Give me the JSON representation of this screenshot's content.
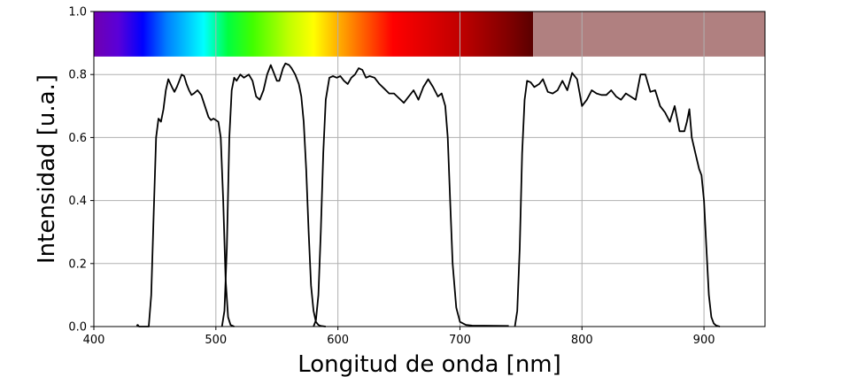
{
  "chart_data": {
    "type": "line",
    "title": "",
    "xlabel": "Longitud de onda [nm]",
    "ylabel": "Intensidad [u.a.]",
    "xlim": [
      400,
      950
    ],
    "ylim": [
      0,
      1
    ],
    "xticks": [
      "400",
      "500",
      "600",
      "700",
      "800",
      "900"
    ],
    "yticks": [
      "0.0",
      "0.2",
      "0.4",
      "0.6",
      "0.8",
      "1.0"
    ],
    "grid": true,
    "legend": "none",
    "line_color": "#000000",
    "spectrum_band": {
      "y_range": [
        0.857,
        1.0
      ],
      "visible_range_nm": [
        400,
        760
      ],
      "beyond_color": "#b08080"
    },
    "series": [
      {
        "x": [
          435,
          436,
          437,
          445,
          447,
          449,
          451,
          453,
          455,
          457,
          459,
          461,
          464,
          466,
          468,
          470,
          472,
          474,
          476,
          478,
          480,
          482,
          485,
          488,
          491,
          494,
          496,
          498,
          500,
          502,
          504,
          506,
          508,
          510,
          512,
          515
        ],
        "y": [
          0.003,
          0.005,
          0.0,
          0.0,
          0.1,
          0.35,
          0.6,
          0.66,
          0.65,
          0.69,
          0.75,
          0.785,
          0.76,
          0.745,
          0.76,
          0.78,
          0.8,
          0.795,
          0.77,
          0.75,
          0.735,
          0.74,
          0.75,
          0.735,
          0.7,
          0.665,
          0.655,
          0.66,
          0.655,
          0.65,
          0.6,
          0.4,
          0.15,
          0.03,
          0.005,
          0.0
        ]
      },
      {
        "x": [
          505,
          507,
          509,
          511,
          513,
          515,
          517,
          520,
          523,
          527,
          530,
          533,
          536,
          539,
          542,
          545,
          548,
          550,
          552,
          555,
          557,
          560,
          562,
          565,
          568,
          570,
          572,
          574,
          576,
          578,
          580,
          582,
          584,
          586,
          590
        ],
        "y": [
          0.0,
          0.05,
          0.25,
          0.6,
          0.75,
          0.79,
          0.78,
          0.8,
          0.79,
          0.8,
          0.78,
          0.73,
          0.72,
          0.75,
          0.8,
          0.83,
          0.8,
          0.78,
          0.78,
          0.82,
          0.835,
          0.83,
          0.82,
          0.8,
          0.77,
          0.73,
          0.65,
          0.5,
          0.3,
          0.13,
          0.05,
          0.015,
          0.005,
          0.002,
          0.0
        ]
      },
      {
        "x": [
          580,
          582,
          584,
          586,
          588,
          590,
          593,
          596,
          599,
          602,
          605,
          608,
          611,
          614,
          617,
          620,
          623,
          626,
          630,
          634,
          638,
          642,
          646,
          650,
          654,
          658,
          662,
          666,
          670,
          674,
          678,
          682,
          685,
          688,
          690,
          692,
          694,
          697,
          700,
          705,
          710,
          740
        ],
        "y": [
          0.0,
          0.02,
          0.1,
          0.3,
          0.55,
          0.72,
          0.79,
          0.795,
          0.79,
          0.795,
          0.78,
          0.77,
          0.79,
          0.8,
          0.82,
          0.815,
          0.79,
          0.795,
          0.79,
          0.77,
          0.755,
          0.74,
          0.74,
          0.725,
          0.71,
          0.73,
          0.75,
          0.72,
          0.76,
          0.785,
          0.76,
          0.73,
          0.74,
          0.7,
          0.6,
          0.4,
          0.2,
          0.06,
          0.015,
          0.005,
          0.003,
          0.002
        ]
      },
      {
        "x": [
          745,
          747,
          749,
          751,
          753,
          755,
          758,
          761,
          765,
          768,
          772,
          776,
          780,
          784,
          788,
          792,
          796,
          800,
          804,
          808,
          812,
          816,
          820,
          824,
          828,
          832,
          836,
          840,
          844,
          848,
          852,
          856,
          860,
          864,
          868,
          872,
          876,
          880,
          884,
          886,
          888,
          890,
          893,
          896,
          898,
          900,
          902,
          904,
          906,
          908,
          910,
          913
        ],
        "y": [
          0.0,
          0.05,
          0.25,
          0.55,
          0.72,
          0.78,
          0.775,
          0.76,
          0.77,
          0.785,
          0.745,
          0.74,
          0.75,
          0.78,
          0.75,
          0.805,
          0.785,
          0.7,
          0.72,
          0.75,
          0.74,
          0.735,
          0.735,
          0.75,
          0.73,
          0.72,
          0.74,
          0.73,
          0.72,
          0.8,
          0.8,
          0.745,
          0.75,
          0.7,
          0.68,
          0.65,
          0.7,
          0.62,
          0.62,
          0.65,
          0.69,
          0.6,
          0.55,
          0.5,
          0.48,
          0.4,
          0.25,
          0.1,
          0.03,
          0.01,
          0.003,
          0.0
        ]
      }
    ]
  }
}
